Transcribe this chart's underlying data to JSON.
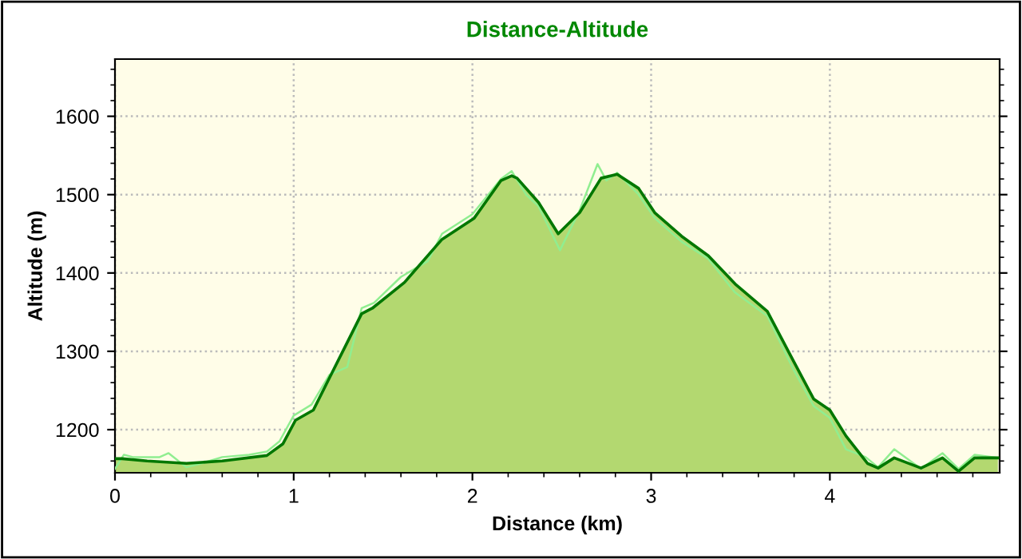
{
  "chart_data": {
    "type": "area",
    "title": "Distance-Altitude",
    "xlabel": "Distance (km)",
    "ylabel": "Altitude (m)",
    "xlim": [
      0,
      4.95
    ],
    "xticks": [
      0,
      1,
      2,
      3,
      4
    ],
    "ylim": [
      1145,
      1673
    ],
    "yticks": [
      1200,
      1300,
      1400,
      1500,
      1600
    ],
    "grid": true,
    "legend": false,
    "series": [
      {
        "type": "line",
        "color": "#90ee90",
        "x": [
          0.0,
          0.05,
          0.1,
          0.25,
          0.3,
          0.4,
          0.5,
          0.6,
          0.75,
          0.85,
          0.92,
          1.0,
          1.1,
          1.2,
          1.3,
          1.38,
          1.45,
          1.6,
          1.75,
          1.83,
          2.0,
          2.16,
          2.22,
          2.3,
          2.37,
          2.49,
          2.6,
          2.7,
          2.75,
          2.81,
          2.93,
          3.02,
          3.17,
          3.32,
          3.47,
          3.65,
          3.8,
          3.91,
          4.0,
          4.09,
          4.2,
          4.27,
          4.36,
          4.51,
          4.63,
          4.72,
          4.81,
          4.94
        ],
        "values": [
          1150,
          1168,
          1165,
          1165,
          1170,
          1152,
          1158,
          1165,
          1168,
          1172,
          1185,
          1218,
          1232,
          1270,
          1280,
          1355,
          1362,
          1395,
          1415,
          1450,
          1475,
          1520,
          1530,
          1500,
          1485,
          1429,
          1480,
          1539,
          1518,
          1528,
          1500,
          1470,
          1440,
          1418,
          1375,
          1345,
          1275,
          1230,
          1215,
          1175,
          1165,
          1152,
          1175,
          1150,
          1170,
          1150,
          1168,
          1164
        ]
      },
      {
        "color": "#007700",
        "x": [
          0.0,
          0.04,
          0.18,
          0.4,
          0.6,
          0.85,
          0.94,
          1.01,
          1.11,
          1.2,
          1.29,
          1.38,
          1.44,
          1.62,
          1.83,
          2.01,
          2.16,
          2.22,
          2.25,
          2.37,
          2.48,
          2.6,
          2.72,
          2.81,
          2.93,
          3.02,
          3.17,
          3.32,
          3.47,
          3.65,
          3.8,
          3.91,
          4.0,
          4.09,
          4.21,
          4.27,
          4.36,
          4.51,
          4.63,
          4.72,
          4.81,
          4.94
        ],
        "values": [
          1163,
          1163,
          1160,
          1157,
          1160,
          1167,
          1182,
          1212,
          1225,
          1266,
          1307,
          1348,
          1355,
          1388,
          1443,
          1470,
          1518,
          1524,
          1521,
          1490,
          1450,
          1477,
          1521,
          1526,
          1508,
          1477,
          1447,
          1422,
          1386,
          1351,
          1286,
          1239,
          1225,
          1192,
          1157,
          1151,
          1164,
          1151,
          1164,
          1147,
          1164,
          1164
        ]
      }
    ]
  }
}
